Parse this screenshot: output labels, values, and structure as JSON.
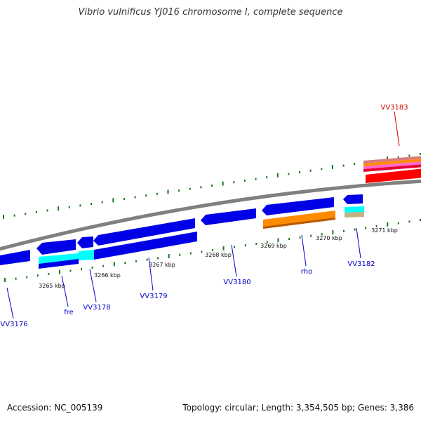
{
  "header": {
    "title": "Vibrio vulnificus YJ016 chromosome I, complete sequence"
  },
  "footer": {
    "accession": "Accession: NC_005139",
    "stats": "Topology: circular; Length: 3,354,505 bp; Genes: 3,386"
  },
  "scale": {
    "ticks": [
      "3265 kbp",
      "3266 kbp",
      "3267 kbp",
      "3268 kbp",
      "3269 kbp",
      "3270 kbp",
      "3271 kbp"
    ]
  },
  "genes": [
    "VV3176",
    "fre",
    "VV3178",
    "VV3179",
    "VV3180",
    "rho",
    "VV3182",
    "VV3183"
  ],
  "colors": {
    "backbone": "#808080",
    "cds": "#0000e6",
    "cds_dark": "#00008c",
    "rna": "#00ffff",
    "orange": "#ff8c00",
    "red": "#ff0000",
    "tick": "#1a7a1a",
    "label_blue": "#0000cc",
    "label_red": "#cc0000"
  }
}
